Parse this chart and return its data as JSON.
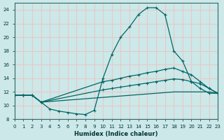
{
  "xlabel": "Humidex (Indice chaleur)",
  "bg_color": "#cce8e8",
  "grid_color": "#e8c8c8",
  "line_color": "#006666",
  "xmin": 0,
  "xmax": 23,
  "ymin": 8,
  "ymax": 25,
  "yticks": [
    8,
    10,
    12,
    14,
    16,
    18,
    20,
    22,
    24
  ],
  "line1_x": [
    0,
    1,
    2,
    3,
    4,
    5,
    6,
    7,
    8,
    9,
    10,
    11,
    12,
    13,
    14,
    15,
    16,
    17,
    18,
    19,
    20,
    21,
    22,
    23
  ],
  "line1_y": [
    11.5,
    11.5,
    11.5,
    10.5,
    9.5,
    9.2,
    9.0,
    8.8,
    8.7,
    9.3,
    14.0,
    17.5,
    20.0,
    21.5,
    23.3,
    24.3,
    24.3,
    23.3,
    18.0,
    16.5,
    13.5,
    12.5,
    11.8,
    11.8
  ],
  "line2_x": [
    0,
    1,
    2,
    3,
    10,
    11,
    12,
    13,
    14,
    15,
    16,
    17,
    18,
    19,
    20,
    21,
    22,
    23
  ],
  "line2_y": [
    11.5,
    11.5,
    11.5,
    10.5,
    13.5,
    13.7,
    14.0,
    14.3,
    14.5,
    14.8,
    15.0,
    15.3,
    15.5,
    15.0,
    14.5,
    13.5,
    12.5,
    11.8
  ],
  "line3_x": [
    0,
    1,
    2,
    3,
    10,
    11,
    12,
    13,
    14,
    15,
    16,
    17,
    18,
    19,
    20,
    21,
    22,
    23
  ],
  "line3_y": [
    11.5,
    11.5,
    11.5,
    10.5,
    12.3,
    12.5,
    12.7,
    12.9,
    13.1,
    13.3,
    13.5,
    13.7,
    13.9,
    13.8,
    13.5,
    13.2,
    12.5,
    11.8
  ],
  "line4_x": [
    0,
    1,
    2,
    3,
    10,
    11,
    12,
    13,
    14,
    15,
    16,
    17,
    18,
    19,
    20,
    21,
    22,
    23
  ],
  "line4_y": [
    11.5,
    11.5,
    11.5,
    10.5,
    11.2,
    11.3,
    11.4,
    11.5,
    11.6,
    11.7,
    11.8,
    11.9,
    12.0,
    12.0,
    12.0,
    12.0,
    12.0,
    11.8
  ]
}
